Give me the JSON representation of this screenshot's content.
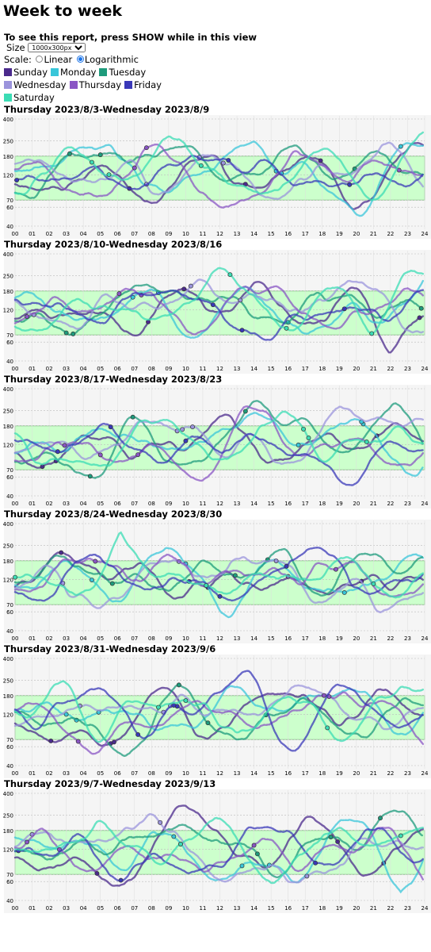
{
  "page": {
    "title": "Week to week",
    "notice": "To see this report, press SHOW while in this view",
    "size_label": "Size",
    "size_value": "1000x300px",
    "scale_label": "Scale:",
    "scale_linear": "Linear",
    "scale_log": "Logarithmic",
    "scale_selected": "Logarithmic"
  },
  "legend": [
    {
      "name": "Sunday",
      "color": "#4b2a8c"
    },
    {
      "name": "Monday",
      "color": "#39c6d9"
    },
    {
      "name": "Tuesday",
      "color": "#1e9b7c"
    },
    {
      "name": "Wednesday",
      "color": "#9b94dc"
    },
    {
      "name": "Thursday",
      "color": "#8a55c4"
    },
    {
      "name": "Friday",
      "color": "#3a38b8"
    },
    {
      "name": "Saturday",
      "color": "#3bdcb4"
    }
  ],
  "chart_data": [
    {
      "type": "line",
      "title": "Thursday 2023/8/3-Wednesday 2023/8/9",
      "seed": 11
    },
    {
      "type": "line",
      "title": "Thursday 2023/8/10-Wednesday 2023/8/16",
      "seed": 23
    },
    {
      "type": "line",
      "title": "Thursday 2023/8/17-Wednesday 2023/8/23",
      "seed": 37
    },
    {
      "type": "line",
      "title": "Thursday 2023/8/24-Wednesday 2023/8/30",
      "seed": 41
    },
    {
      "type": "line",
      "title": "Thursday 2023/8/31-Wednesday 2023/9/6",
      "seed": 53
    },
    {
      "type": "line",
      "title": "Thursday 2023/9/7-Wednesday 2023/9/13",
      "seed": 67
    }
  ],
  "axes": {
    "scale": "log",
    "ylim": [
      40,
      400
    ],
    "yticks": [
      40,
      60,
      70,
      120,
      180,
      250,
      400
    ],
    "xlim": [
      0,
      24
    ],
    "xticks": [
      "00",
      "01",
      "02",
      "03",
      "04",
      "05",
      "06",
      "07",
      "08",
      "09",
      "10",
      "11",
      "12",
      "13",
      "14",
      "15",
      "16",
      "17",
      "18",
      "19",
      "20",
      "21",
      "22",
      "23",
      "24"
    ],
    "target_range": [
      70,
      180
    ],
    "target_color": "#ccffcc",
    "grid": true
  }
}
